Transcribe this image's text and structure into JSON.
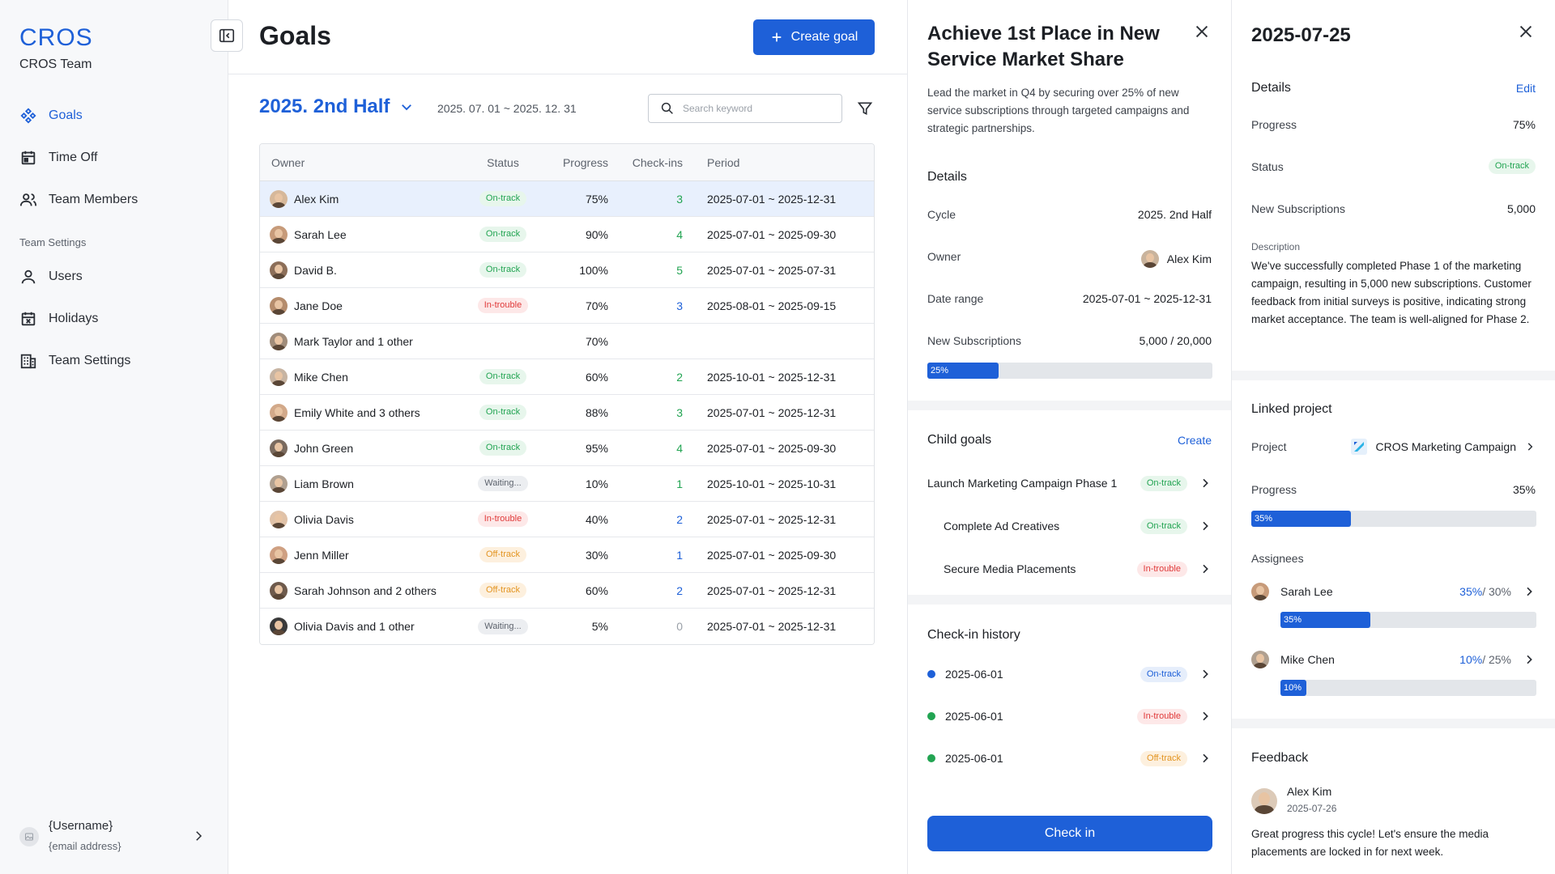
{
  "sidebar": {
    "logo": "CROS",
    "team_name": "CROS Team",
    "nav": [
      {
        "label": "Goals",
        "icon": "goals-icon",
        "active": true
      },
      {
        "label": "Time Off",
        "icon": "calendar-icon"
      },
      {
        "label": "Team Members",
        "icon": "people-icon"
      }
    ],
    "section_label": "Team Settings",
    "settings_nav": [
      {
        "label": "Users",
        "icon": "user-icon"
      },
      {
        "label": "Holidays",
        "icon": "calendar-x-icon"
      },
      {
        "label": "Team Settings",
        "icon": "building-icon"
      }
    ],
    "user": {
      "name": "{Username}",
      "email": "{email address}"
    }
  },
  "main": {
    "title": "Goals",
    "create_label": "Create goal",
    "cycle_title": "2025. 2nd Half",
    "cycle_range": "2025. 07. 01 ~ 2025. 12. 31",
    "search_placeholder": "Search keyword",
    "columns": [
      "Owner",
      "Status",
      "Progress",
      "Check-ins",
      "Period"
    ],
    "rows": [
      {
        "owner": "Alex Kim",
        "status": "On-track",
        "progress": "75%",
        "checkins": "3",
        "period": "2025-07-01 ~ 2025-12-31"
      },
      {
        "owner": "Sarah Lee",
        "status": "On-track",
        "progress": "90%",
        "checkins": "4",
        "period": "2025-07-01 ~ 2025-09-30"
      },
      {
        "owner": "David B.",
        "status": "On-track",
        "progress": "100%",
        "checkins": "5",
        "period": "2025-07-01 ~ 2025-07-31"
      },
      {
        "owner": "Jane Doe",
        "status": "In-trouble",
        "progress": "70%",
        "checkins": "3",
        "period": "2025-08-01 ~ 2025-09-15"
      },
      {
        "owner": "Mark Taylor and 1 other",
        "status": "",
        "progress": "70%",
        "checkins": "",
        "period": ""
      },
      {
        "owner": "Mike Chen",
        "status": "On-track",
        "progress": "60%",
        "checkins": "2",
        "period": "2025-10-01 ~ 2025-12-31"
      },
      {
        "owner": "Emily White and 3 others",
        "status": "On-track",
        "progress": "88%",
        "checkins": "3",
        "period": "2025-07-01 ~ 2025-12-31"
      },
      {
        "owner": "John Green",
        "status": "On-track",
        "progress": "95%",
        "checkins": "4",
        "period": "2025-07-01 ~ 2025-09-30"
      },
      {
        "owner": "Liam Brown",
        "status": "Waiting...",
        "progress": "10%",
        "checkins": "1",
        "period": "2025-10-01 ~ 2025-10-31"
      },
      {
        "owner": "Olivia Davis",
        "status": "In-trouble",
        "progress": "40%",
        "checkins": "2",
        "period": "2025-07-01 ~ 2025-12-31"
      },
      {
        "owner": "Jenn Miller",
        "status": "Off-track",
        "progress": "30%",
        "checkins": "1",
        "period": "2025-07-01 ~ 2025-09-30"
      },
      {
        "owner": "Sarah Johnson and 2 others",
        "status": "Off-track",
        "progress": "60%",
        "checkins": "2",
        "period": "2025-07-01 ~ 2025-12-31"
      },
      {
        "owner": "Olivia Davis and 1 other",
        "status": "Waiting...",
        "progress": "5%",
        "checkins": "0",
        "period": "2025-07-01 ~ 2025-12-31"
      }
    ]
  },
  "goal": {
    "title": "Achieve 1st Place in New Service Market Share",
    "description": "Lead the market in Q4 by securing over 25% of new service subscriptions through targeted campaigns and strategic partnerships.",
    "details_heading": "Details",
    "cycle_label": "Cycle",
    "cycle_value": "2025. 2nd Half",
    "owner_label": "Owner",
    "owner_value": "Alex Kim",
    "date_label": "Date range",
    "date_value": "2025-07-01 ~ 2025-12-31",
    "subs_label": "New Subscriptions",
    "subs_value": "5,000 / 20,000",
    "subs_progress": 25,
    "subs_progress_label": "25%",
    "child_heading": "Child goals",
    "child_create": "Create",
    "child_goals": [
      {
        "label": "Launch Marketing Campaign Phase 1",
        "status": "On-track",
        "indent": false
      },
      {
        "label": "Complete Ad Creatives",
        "status": "On-track",
        "indent": true
      },
      {
        "label": "Secure Media Placements",
        "status": "In-trouble",
        "indent": true
      }
    ],
    "history_heading": "Check-in history",
    "history": [
      {
        "date": "2025-06-01",
        "status": "On-track",
        "dot": "#1e60d8"
      },
      {
        "date": "2025-06-01",
        "status": "In-trouble",
        "dot": "#22a452"
      },
      {
        "date": "2025-06-01",
        "status": "Off-track",
        "dot": "#22a452"
      }
    ],
    "checkin_label": "Check in"
  },
  "checkin": {
    "title": "2025-07-25",
    "details_heading": "Details",
    "edit_label": "Edit",
    "progress_label": "Progress",
    "progress_value": "75%",
    "status_label": "Status",
    "status_value": "On-track",
    "subs_label": "New Subscriptions",
    "subs_value": "5,000",
    "desc_label": "Description",
    "description": "We've successfully completed Phase 1 of the marketing campaign, resulting in 5,000 new subscriptions. Customer feedback from initial surveys is positive, indicating strong market acceptance. The team is well-aligned for Phase 2.",
    "linked_heading": "Linked project",
    "project_label": "Project",
    "project_value": "CROS Marketing Campaign",
    "proj_progress_label": "Progress",
    "proj_progress_value": "35%",
    "proj_progress": 35,
    "proj_progress_text": "35%",
    "assignees_heading": "Assignees",
    "assignees": [
      {
        "name": "Sarah Lee",
        "actual": "35%",
        "target": " / 30%",
        "progress": 35,
        "bar_text": "35%"
      },
      {
        "name": "Mike Chen",
        "actual": "10%",
        "target": " / 25%",
        "progress": 10,
        "bar_text": "10%"
      }
    ],
    "feedback_heading": "Feedback",
    "feedback": {
      "name": "Alex Kim",
      "date": "2025-07-26",
      "text": "Great progress this cycle! Let's ensure the media placements are locked in for next week."
    }
  }
}
